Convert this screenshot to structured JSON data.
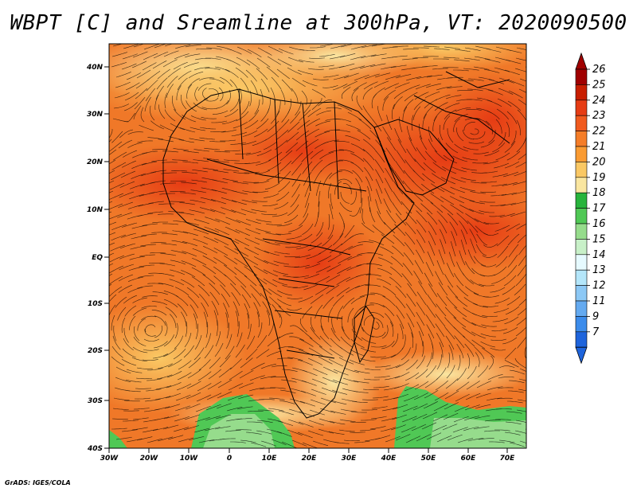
{
  "title": "WBPT [C] and Sreamline at 300hPa, VT: 2020090500",
  "credit": "GrADS: IGES/COLA",
  "map": {
    "variable": "WBPT",
    "units": "C",
    "level": "300hPa",
    "valid_time": "2020090500",
    "lat_labels": [
      "40N",
      "30N",
      "20N",
      "10N",
      "EQ",
      "10S",
      "20S",
      "30S",
      "40S"
    ],
    "lon_labels": [
      "30W",
      "20W",
      "10W",
      "0",
      "10E",
      "20E",
      "30E",
      "40E",
      "50E",
      "60E",
      "70E"
    ]
  },
  "colorbar": {
    "labels": [
      "26",
      "25",
      "24",
      "23",
      "22",
      "21",
      "20",
      "19",
      "18",
      "17",
      "16",
      "15",
      "14",
      "13",
      "12",
      "11",
      "9",
      "7"
    ],
    "colors": [
      "#a00000",
      "#c81e00",
      "#e63c14",
      "#f05a1e",
      "#f57d28",
      "#fa9b32",
      "#fac864",
      "#fae6a0",
      "#28b43c",
      "#50c855",
      "#96dc8c",
      "#c8f0c8",
      "#e6faff",
      "#b4e6fa",
      "#8cc8f5",
      "#64aaf0",
      "#3c8ceb",
      "#1e64dc"
    ]
  }
}
